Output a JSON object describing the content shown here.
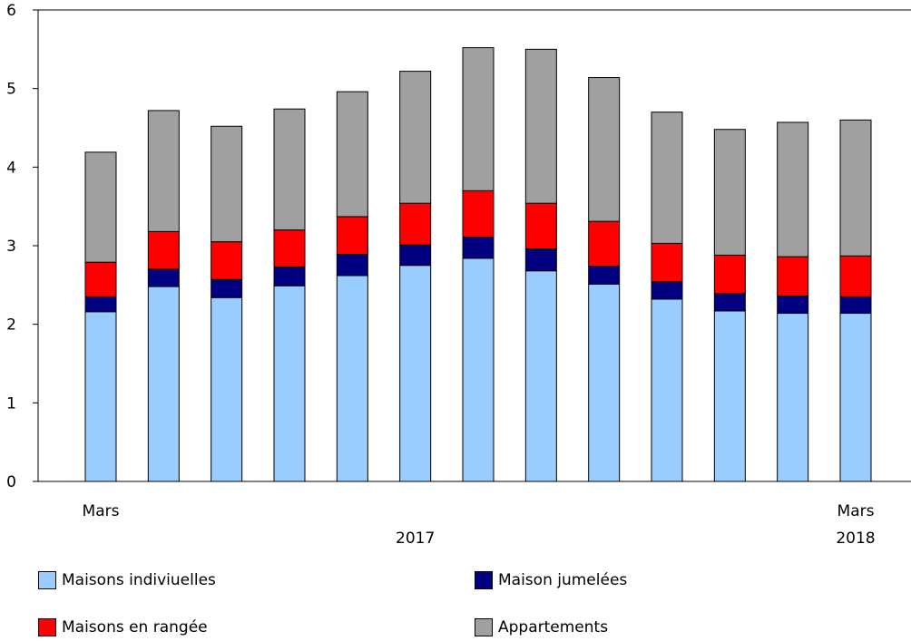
{
  "chart_data": {
    "type": "bar",
    "stacked": true,
    "categories": [
      "Mars",
      "",
      "",
      "",
      "",
      "",
      "",
      "",
      "",
      "",
      "",
      "",
      "Mars"
    ],
    "year_labels": [
      "2017",
      "2018"
    ],
    "ylim": [
      0,
      6
    ],
    "yticks": [
      "0",
      "1",
      "2",
      "3",
      "4",
      "5",
      "6"
    ],
    "grid": false,
    "series": [
      {
        "name": "Maisons indiviuelles",
        "color": "#99ccff",
        "values": [
          2.16,
          2.48,
          2.34,
          2.49,
          2.62,
          2.75,
          2.84,
          2.68,
          2.51,
          2.32,
          2.17,
          2.14,
          2.14
        ]
      },
      {
        "name": "Maison jumelées",
        "color": "#000080",
        "values": [
          0.19,
          0.22,
          0.23,
          0.24,
          0.27,
          0.26,
          0.27,
          0.28,
          0.23,
          0.22,
          0.22,
          0.22,
          0.21
        ]
      },
      {
        "name": "Maisons en rangée",
        "color": "#ff0000",
        "values": [
          0.44,
          0.48,
          0.48,
          0.47,
          0.48,
          0.53,
          0.59,
          0.58,
          0.57,
          0.49,
          0.49,
          0.5,
          0.52
        ]
      },
      {
        "name": "Appartements",
        "color": "#a0a0a0",
        "values": [
          1.4,
          1.54,
          1.47,
          1.54,
          1.59,
          1.68,
          1.82,
          1.96,
          1.83,
          1.67,
          1.6,
          1.71,
          1.73
        ]
      }
    ],
    "legend_position": "bottom"
  }
}
